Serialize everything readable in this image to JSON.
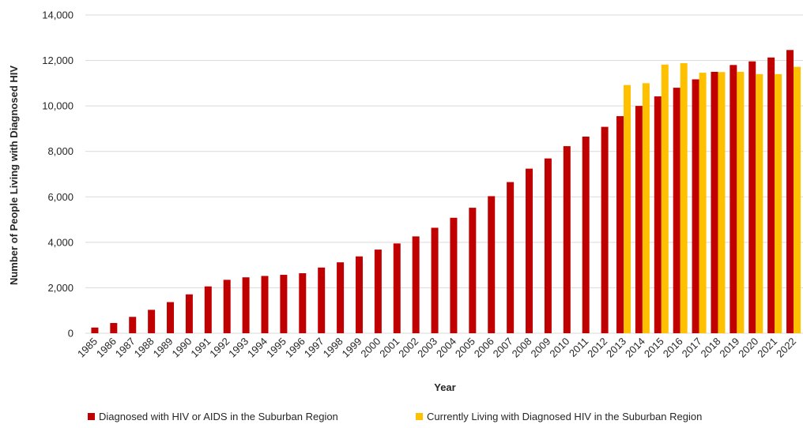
{
  "chart_data": {
    "type": "bar",
    "title": "",
    "xlabel": "Year",
    "ylabel": "Number of People Living with Diagnosed HIV",
    "ylim": [
      0,
      14000
    ],
    "yticks": [
      0,
      2000,
      4000,
      6000,
      8000,
      10000,
      12000,
      14000
    ],
    "ytick_labels": [
      "0",
      "2,000",
      "4,000",
      "6,000",
      "8,000",
      "10,000",
      "12,000",
      "14,000"
    ],
    "grid": true,
    "legend_position": "bottom",
    "categories": [
      "1985",
      "1986",
      "1987",
      "1988",
      "1989",
      "1990",
      "1991",
      "1992",
      "1993",
      "1994",
      "1995",
      "1996",
      "1997",
      "1998",
      "1999",
      "2000",
      "2001",
      "2002",
      "2003",
      "2004",
      "2005",
      "2006",
      "2007",
      "2008",
      "2009",
      "2010",
      "2011",
      "2012",
      "2013",
      "2014",
      "2015",
      "2016",
      "2017",
      "2018",
      "2019",
      "2020",
      "2021",
      "2022"
    ],
    "series": [
      {
        "name": "Diagnosed with HIV or AIDS in the Suburban Region",
        "color": "#c00000",
        "values": [
          250,
          450,
          720,
          1030,
          1370,
          1710,
          2060,
          2350,
          2460,
          2520,
          2570,
          2640,
          2890,
          3120,
          3380,
          3680,
          3950,
          4260,
          4640,
          5080,
          5520,
          6030,
          6650,
          7240,
          7690,
          8230,
          8650,
          9080,
          9550,
          10000,
          10420,
          10800,
          11170,
          11500,
          11800,
          11960,
          12130,
          12460
        ]
      },
      {
        "name": "Currently Living with Diagnosed HIV in the Suburban Region",
        "color": "#ffc000",
        "values": [
          null,
          null,
          null,
          null,
          null,
          null,
          null,
          null,
          null,
          null,
          null,
          null,
          null,
          null,
          null,
          null,
          null,
          null,
          null,
          null,
          null,
          null,
          null,
          null,
          null,
          null,
          null,
          null,
          10920,
          11000,
          11820,
          11880,
          11460,
          11490,
          11500,
          11400,
          11400,
          11720
        ]
      }
    ]
  }
}
